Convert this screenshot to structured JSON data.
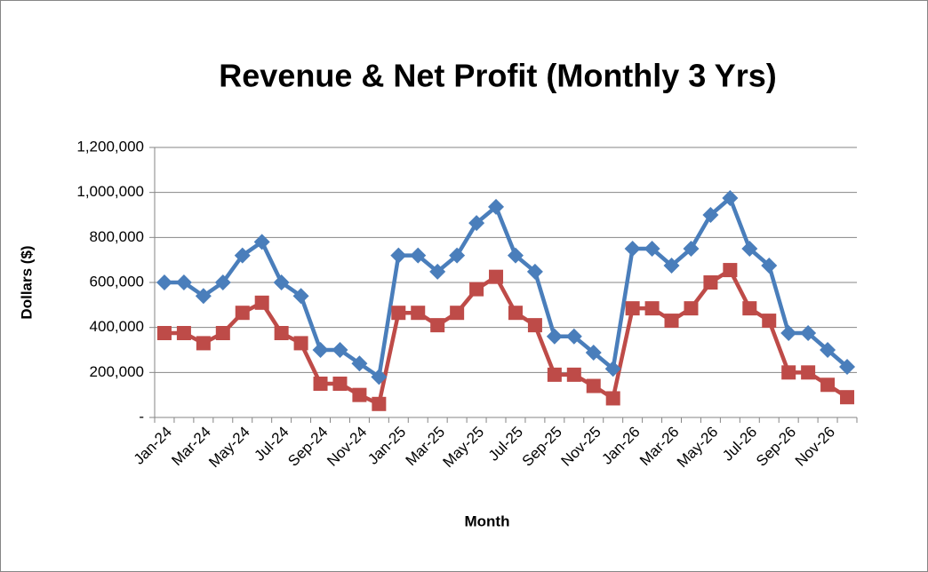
{
  "chart_data": {
    "type": "line",
    "title": "Revenue & Net Profit (Monthly 3 Yrs)",
    "x_label": "Month",
    "y_label": "Dollars ($)",
    "categories": [
      "Jan-24",
      null,
      "Mar-24",
      null,
      "May-24",
      null,
      "Jul-24",
      null,
      "Sep-24",
      null,
      "Nov-24",
      null,
      "Jan-25",
      null,
      "Mar-25",
      null,
      "May-25",
      null,
      "Jul-25",
      null,
      "Sep-25",
      null,
      "Nov-25",
      null,
      "Jan-26",
      null,
      "Mar-26",
      null,
      "May-26",
      null,
      "Jul-26",
      null,
      "Sep-26",
      null,
      "Nov-26",
      null
    ],
    "series": [
      {
        "name": "Revenue",
        "color": "#4a7ebb",
        "marker": "diamond",
        "values": [
          600000,
          600000,
          540000,
          600000,
          720000,
          780000,
          600000,
          540000,
          300000,
          300000,
          240000,
          180000,
          720000,
          720000,
          648000,
          720000,
          864000,
          936000,
          720000,
          648000,
          360000,
          360000,
          288000,
          216000,
          750000,
          750000,
          675000,
          750000,
          900000,
          975000,
          750000,
          675000,
          375000,
          375000,
          300000,
          225000
        ]
      },
      {
        "name": "Net Profit",
        "color": "#be4b48",
        "marker": "square",
        "values": [
          375000,
          375000,
          330000,
          375000,
          465000,
          510000,
          375000,
          330000,
          150000,
          150000,
          100000,
          60000,
          465000,
          465000,
          410000,
          465000,
          570000,
          625000,
          465000,
          410000,
          190000,
          190000,
          140000,
          85000,
          485000,
          485000,
          430000,
          485000,
          600000,
          655000,
          485000,
          430000,
          200000,
          200000,
          145000,
          90000
        ]
      }
    ],
    "ylim": [
      0,
      1200000
    ],
    "yticks": [
      {
        "value": 0,
        "label": "-"
      },
      {
        "value": 200000,
        "label": "200,000"
      },
      {
        "value": 400000,
        "label": "400,000"
      },
      {
        "value": 600000,
        "label": "600,000"
      },
      {
        "value": 800000,
        "label": "800,000"
      },
      {
        "value": 1000000,
        "label": "1,000,000"
      },
      {
        "value": 1200000,
        "label": "1,200,000"
      }
    ],
    "grid": true
  }
}
